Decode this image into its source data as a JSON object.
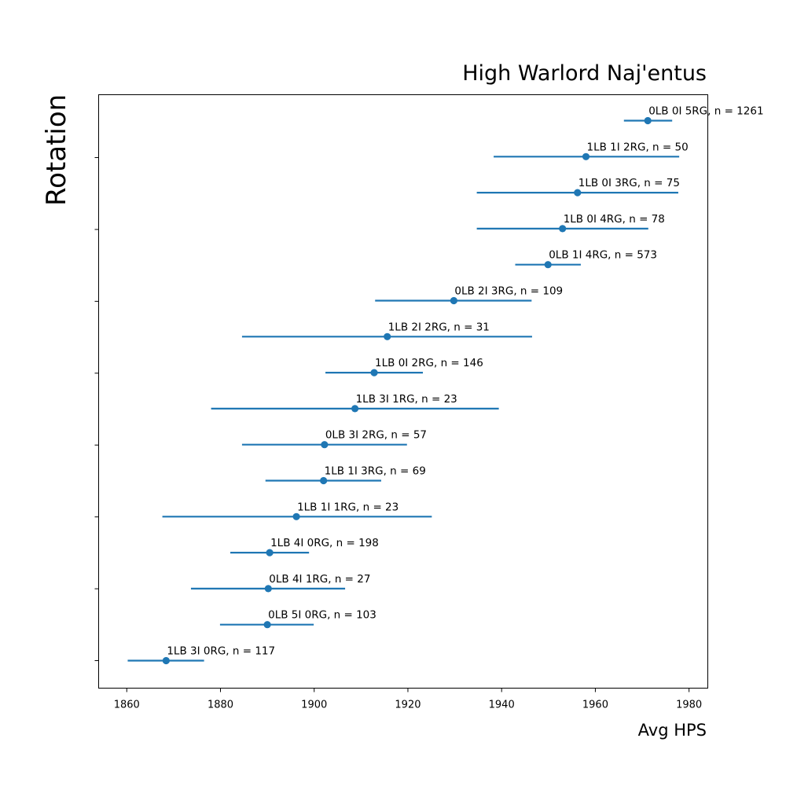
{
  "chart_data": {
    "type": "scatter",
    "title": "High Warlord Naj'entus",
    "xlabel": "Avg HPS",
    "ylabel": "Rotation",
    "xlim": [
      1854,
      1984
    ],
    "xticks": [
      1860,
      1880,
      1900,
      1920,
      1940,
      1960,
      1980
    ],
    "ytick_count": 8,
    "grid": false,
    "color": "#1f77b4",
    "points": [
      {
        "label": "1LB 3I 0RG, n = 117",
        "mean": 1868.4,
        "low": 1860.2,
        "high": 1876.5
      },
      {
        "label": "0LB 5I 0RG, n = 103",
        "mean": 1890.0,
        "low": 1879.9,
        "high": 1899.9
      },
      {
        "label": "0LB 4I 1RG, n = 27",
        "mean": 1890.2,
        "low": 1873.7,
        "high": 1906.6
      },
      {
        "label": "1LB 4I 0RG, n = 198",
        "mean": 1890.5,
        "low": 1882.1,
        "high": 1898.9
      },
      {
        "label": "1LB 1I 1RG, n = 23",
        "mean": 1896.2,
        "low": 1867.6,
        "high": 1925.1
      },
      {
        "label": "1LB 1I 3RG, n = 69",
        "mean": 1902.0,
        "low": 1889.6,
        "high": 1914.3
      },
      {
        "label": "0LB 3I 2RG, n = 57",
        "mean": 1902.2,
        "low": 1884.6,
        "high": 1919.8
      },
      {
        "label": "1LB 3I 1RG, n = 23",
        "mean": 1908.7,
        "low": 1878.0,
        "high": 1939.4
      },
      {
        "label": "1LB 0I 2RG, n = 146",
        "mean": 1912.8,
        "low": 1902.4,
        "high": 1923.2
      },
      {
        "label": "1LB 2I 2RG, n = 31",
        "mean": 1915.6,
        "low": 1884.6,
        "high": 1946.5
      },
      {
        "label": "0LB 2I 3RG, n = 109",
        "mean": 1929.8,
        "low": 1913.0,
        "high": 1946.4
      },
      {
        "label": "0LB 1I 4RG, n = 573",
        "mean": 1949.9,
        "low": 1942.9,
        "high": 1956.9
      },
      {
        "label": "1LB 0I 4RG, n = 78",
        "mean": 1953.0,
        "low": 1934.7,
        "high": 1971.3
      },
      {
        "label": "1LB 0I 3RG, n = 75",
        "mean": 1956.2,
        "low": 1934.7,
        "high": 1977.7
      },
      {
        "label": "1LB 1I 2RG, n = 50",
        "mean": 1958.0,
        "low": 1938.3,
        "high": 1977.9
      },
      {
        "label": "0LB 0I 5RG, n = 1261",
        "mean": 1971.2,
        "low": 1966.1,
        "high": 1976.4
      }
    ]
  }
}
